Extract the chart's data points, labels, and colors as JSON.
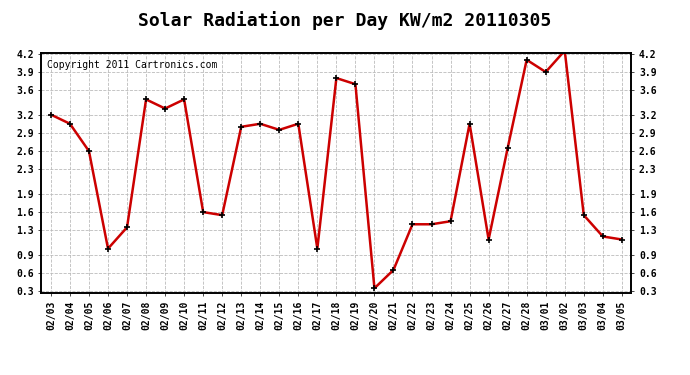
{
  "title": "Solar Radiation per Day KW/m2 20110305",
  "copyright": "Copyright 2011 Cartronics.com",
  "x_labels": [
    "02/03",
    "02/04",
    "02/05",
    "02/06",
    "02/07",
    "02/08",
    "02/09",
    "02/10",
    "02/11",
    "02/12",
    "02/13",
    "02/14",
    "02/15",
    "02/16",
    "02/17",
    "02/18",
    "02/19",
    "02/20",
    "02/21",
    "02/22",
    "02/23",
    "02/24",
    "02/25",
    "02/26",
    "02/27",
    "02/28",
    "03/01",
    "03/02",
    "03/03",
    "03/04",
    "03/05"
  ],
  "y_values": [
    3.2,
    3.05,
    2.6,
    1.0,
    1.35,
    3.45,
    3.3,
    3.45,
    1.6,
    1.55,
    3.0,
    3.05,
    2.95,
    3.05,
    1.0,
    3.8,
    3.7,
    0.35,
    0.65,
    1.4,
    1.4,
    1.45,
    3.05,
    1.15,
    2.65,
    4.1,
    3.9,
    4.25,
    1.55,
    1.2,
    1.15
  ],
  "line_color": "#cc0000",
  "marker": "+",
  "marker_color": "#000000",
  "bg_color": "#ffffff",
  "grid_color": "#bbbbbb",
  "y_min": 0.3,
  "y_max": 4.2,
  "y_ticks": [
    0.3,
    0.6,
    0.9,
    1.3,
    1.6,
    1.9,
    2.3,
    2.6,
    2.9,
    3.2,
    3.6,
    3.9,
    4.2
  ],
  "title_fontsize": 13,
  "copyright_fontsize": 7,
  "tick_fontsize": 7,
  "line_width": 1.8
}
